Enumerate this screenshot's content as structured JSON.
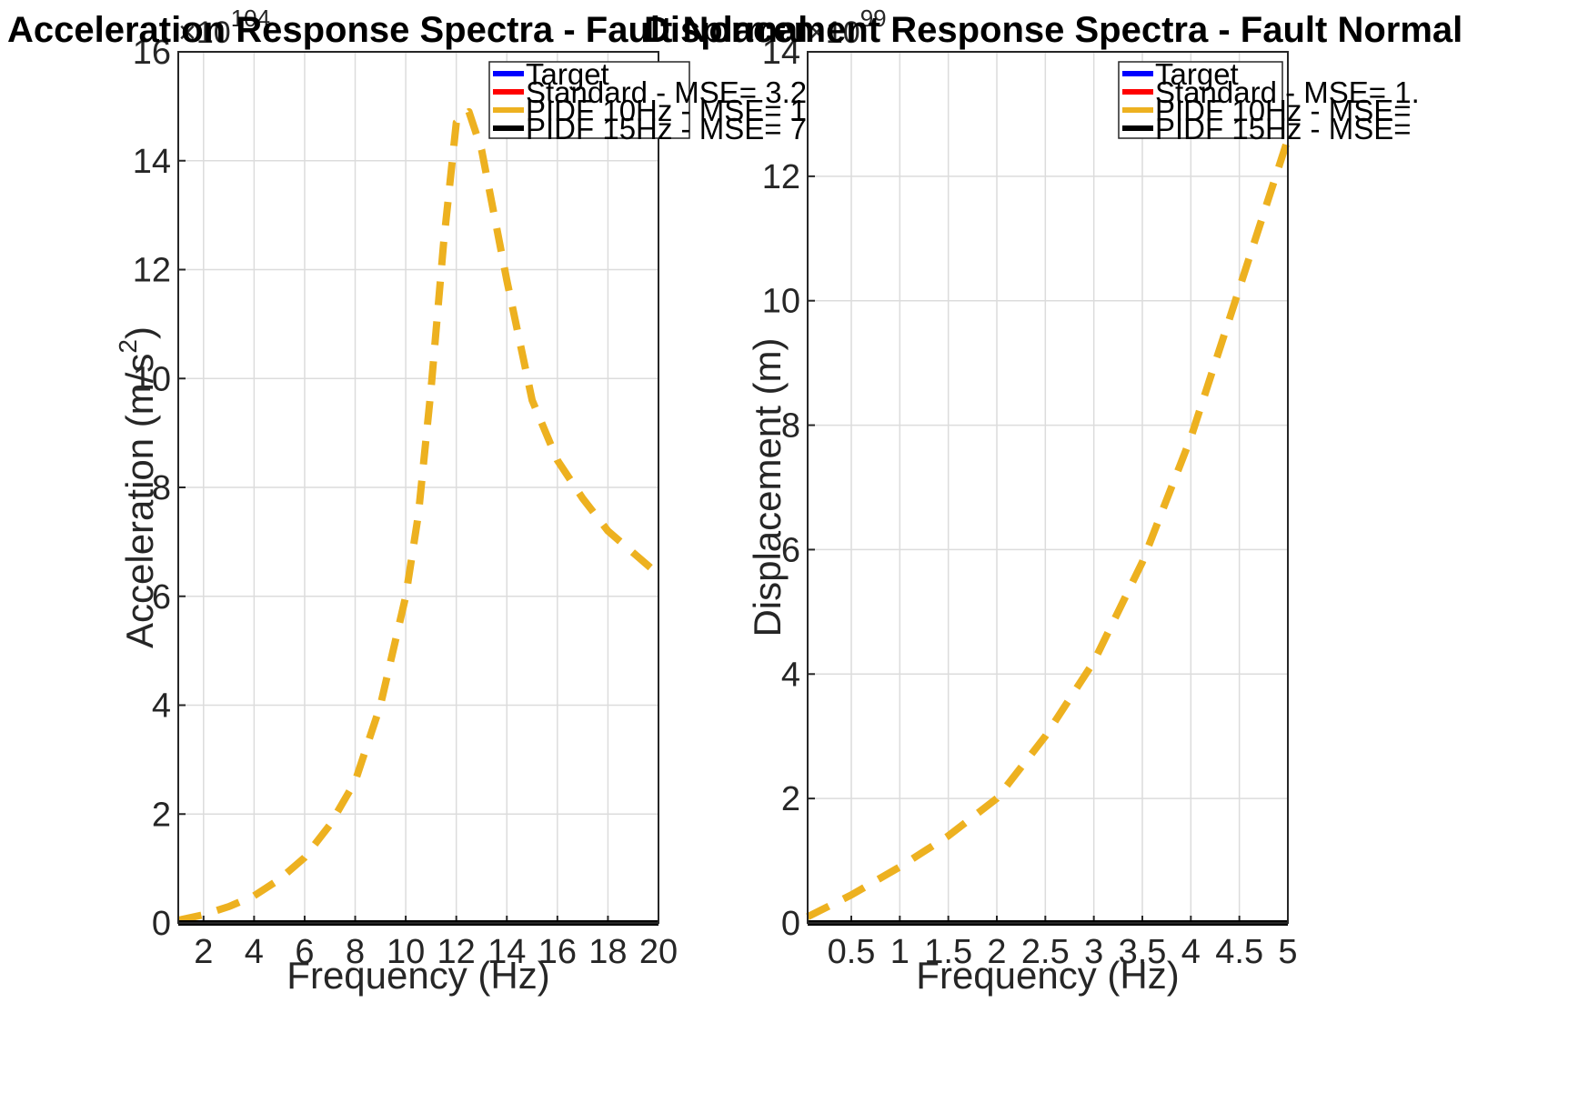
{
  "charts": [
    {
      "title": "Acceleration Response Spectra - Fault Normal",
      "xlabel": "Frequency (Hz)",
      "ylabel_main": "Acceleration (m/s",
      "ylabel_sup": "2",
      "ylabel_close": ")",
      "exponent_base": "×10",
      "exponent_power": "104",
      "xticks": [
        "2",
        "4",
        "6",
        "8",
        "10",
        "12",
        "14",
        "16",
        "18",
        "20"
      ],
      "yticks": [
        "0",
        "2",
        "4",
        "6",
        "8",
        "10",
        "12",
        "14",
        "16"
      ],
      "legend": [
        "Target",
        "Standard -  MSE= 3.2",
        "PIDF 10Hz - MSE= 1",
        "PIDF 15Hz - MSE= 7"
      ]
    },
    {
      "title": "Displacement Response Spectra - Fault Normal",
      "xlabel": "Frequency (Hz)",
      "ylabel_main": "Displacement (m)",
      "exponent_base": "×10",
      "exponent_power": "99",
      "xticks": [
        "0.5",
        "1",
        "1.5",
        "2",
        "2.5",
        "3",
        "3.5",
        "4",
        "4.5",
        "5"
      ],
      "yticks": [
        "0",
        "2",
        "4",
        "6",
        "8",
        "10",
        "12",
        "14"
      ],
      "legend": [
        "Target",
        "Standard - MSE= 1.",
        "PIDF 10Hz - MSE=",
        "PIDF 15Hz - MSE="
      ]
    }
  ],
  "chart_data": [
    {
      "type": "line",
      "title": "Acceleration Response Spectra - Fault Normal",
      "xlabel": "Frequency (Hz)",
      "ylabel": "Acceleration (m/s^2)",
      "y_scale_factor": "x10^104",
      "xlim": [
        1,
        20
      ],
      "ylim": [
        0,
        16
      ],
      "grid": true,
      "legend_position": "top-right",
      "series": [
        {
          "name": "Target",
          "color": "#0000ff",
          "style": "solid",
          "x": [
            1,
            20
          ],
          "y": [
            0,
            0
          ]
        },
        {
          "name": "Standard -  MSE= 3.2",
          "color": "#ff0000",
          "style": "solid",
          "x": [
            1,
            20
          ],
          "y": [
            0,
            0
          ]
        },
        {
          "name": "PIDF 10Hz - MSE= 1",
          "color": "#edb120",
          "style": "dashed",
          "x": [
            1,
            2,
            3,
            4,
            5,
            6,
            7,
            8,
            9,
            10,
            10.5,
            11,
            11.5,
            12,
            12.5,
            13,
            14,
            15,
            16,
            17,
            18,
            19,
            20
          ],
          "y": [
            0.05,
            0.15,
            0.3,
            0.5,
            0.8,
            1.2,
            1.8,
            2.6,
            4.0,
            6.0,
            7.5,
            9.8,
            12.5,
            14.7,
            14.9,
            14.2,
            11.8,
            9.6,
            8.5,
            7.8,
            7.2,
            6.8,
            6.4
          ]
        },
        {
          "name": "PIDF 15Hz - MSE= 7",
          "color": "#000000",
          "style": "solid",
          "x": [
            1,
            20
          ],
          "y": [
            0,
            0
          ]
        }
      ]
    },
    {
      "type": "line",
      "title": "Displacement Response Spectra - Fault Normal",
      "xlabel": "Frequency (Hz)",
      "ylabel": "Displacement (m)",
      "y_scale_factor": "x10^99",
      "xlim": [
        0.05,
        5
      ],
      "ylim": [
        0,
        14
      ],
      "grid": true,
      "legend_position": "top-right",
      "series": [
        {
          "name": "Target",
          "color": "#0000ff",
          "style": "solid",
          "x": [
            0.05,
            5
          ],
          "y": [
            0,
            0
          ]
        },
        {
          "name": "Standard - MSE= 1.",
          "color": "#ff0000",
          "style": "solid",
          "x": [
            0.05,
            5
          ],
          "y": [
            0,
            0
          ]
        },
        {
          "name": "PIDF 10Hz - MSE=",
          "color": "#edb120",
          "style": "dashed",
          "x": [
            0.05,
            0.5,
            1,
            1.5,
            2,
            2.5,
            3,
            3.5,
            4,
            4.5,
            5
          ],
          "y": [
            0.1,
            0.45,
            0.9,
            1.4,
            2.0,
            3.0,
            4.2,
            5.8,
            7.8,
            10.2,
            12.6
          ]
        },
        {
          "name": "PIDF 15Hz - MSE=",
          "color": "#000000",
          "style": "solid",
          "x": [
            0.05,
            5
          ],
          "y": [
            0,
            0
          ]
        }
      ]
    }
  ]
}
